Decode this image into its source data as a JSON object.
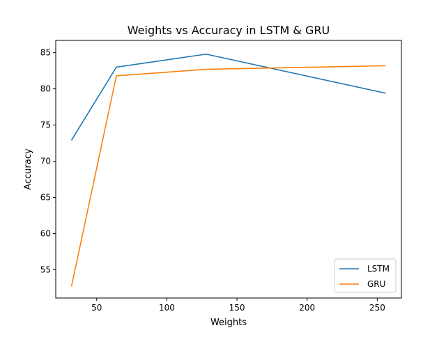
{
  "chart_data": {
    "type": "line",
    "title": "Weights vs Accuracy in LSTM & GRU",
    "xlabel": "Weights",
    "ylabel": "Accuracy",
    "xlim": [
      20.8,
      267.2
    ],
    "ylim": [
      51.1,
      86.7
    ],
    "xticks": [
      50,
      100,
      150,
      200,
      250
    ],
    "yticks": [
      55,
      60,
      65,
      70,
      75,
      80,
      85
    ],
    "grid": false,
    "legend_position": "lower-right",
    "x": [
      32,
      64,
      128,
      256
    ],
    "series": [
      {
        "name": "LSTM",
        "color": "#1f77b4",
        "values": [
          72.9,
          83.0,
          84.8,
          79.4
        ]
      },
      {
        "name": "GRU",
        "color": "#ff7f0e",
        "values": [
          52.7,
          81.8,
          82.7,
          83.2
        ]
      }
    ]
  }
}
